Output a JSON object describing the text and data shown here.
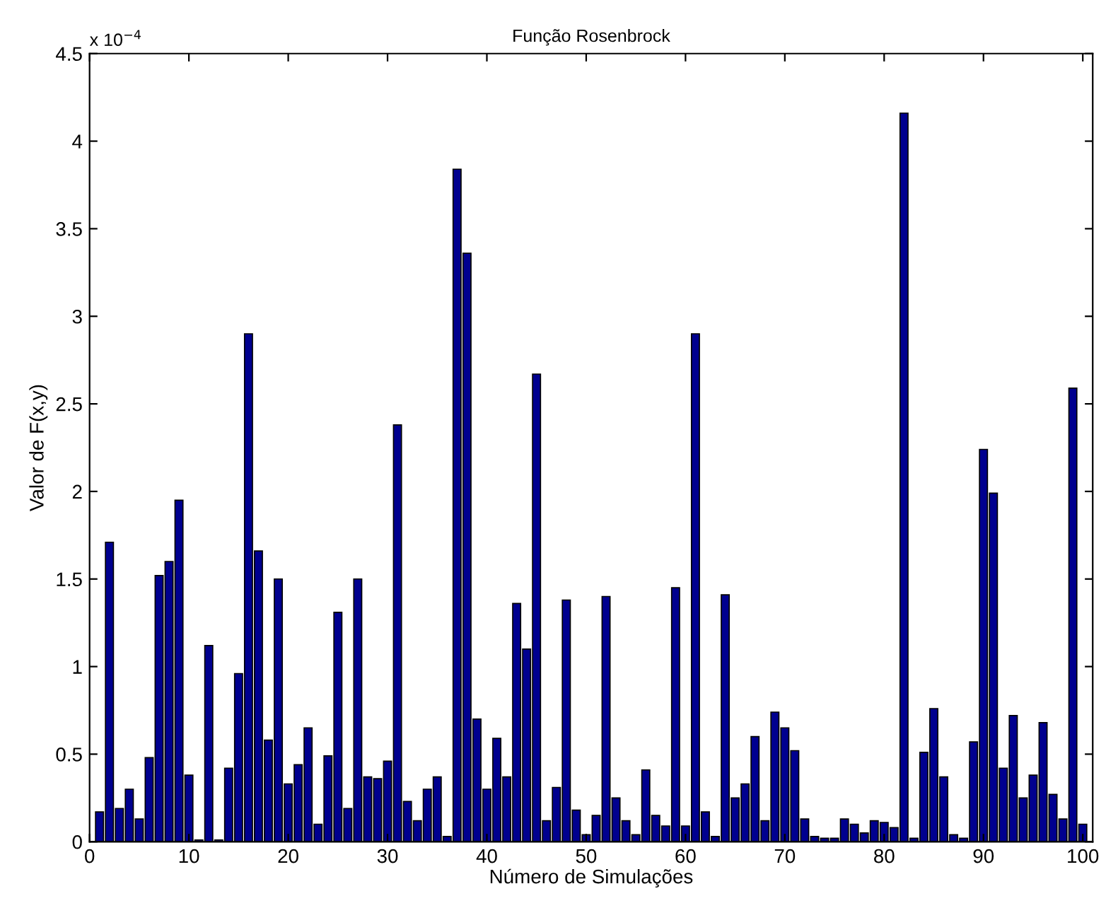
{
  "chart_data": {
    "type": "bar",
    "title": "Função Rosenbrock",
    "xlabel": "Número de Simulações",
    "ylabel": "Valor de F(x,y)",
    "annotations": [
      "x 10$^{−4}$"
    ],
    "x": [
      1,
      2,
      3,
      4,
      5,
      6,
      7,
      8,
      9,
      10,
      11,
      12,
      13,
      14,
      15,
      16,
      17,
      18,
      19,
      20,
      21,
      22,
      23,
      24,
      25,
      26,
      27,
      28,
      29,
      30,
      31,
      32,
      33,
      34,
      35,
      36,
      37,
      38,
      39,
      40,
      41,
      42,
      43,
      44,
      45,
      46,
      47,
      48,
      49,
      50,
      51,
      52,
      53,
      54,
      55,
      56,
      57,
      58,
      59,
      60,
      61,
      62,
      63,
      64,
      65,
      66,
      67,
      68,
      69,
      70,
      71,
      72,
      73,
      74,
      75,
      76,
      77,
      78,
      79,
      80,
      81,
      82,
      83,
      84,
      85,
      86,
      87,
      88,
      89,
      90,
      91,
      92,
      93,
      94,
      95,
      96,
      97,
      98,
      99,
      100
    ],
    "values": [
      0.17,
      1.71,
      0.19,
      0.3,
      0.13,
      0.48,
      1.52,
      1.6,
      1.95,
      0.38,
      0.01,
      1.12,
      0.01,
      0.42,
      0.96,
      2.9,
      1.66,
      0.58,
      1.5,
      0.33,
      0.44,
      0.65,
      0.1,
      0.49,
      1.31,
      0.19,
      1.5,
      0.37,
      0.36,
      0.46,
      2.38,
      0.23,
      0.12,
      0.3,
      0.37,
      0.03,
      3.84,
      3.36,
      0.7,
      0.3,
      0.59,
      0.37,
      1.36,
      1.1,
      2.67,
      0.12,
      0.31,
      1.38,
      0.18,
      0.04,
      0.15,
      1.4,
      0.25,
      0.12,
      0.04,
      0.41,
      0.15,
      0.09,
      1.45,
      0.09,
      2.9,
      0.17,
      0.03,
      1.41,
      0.25,
      0.33,
      0.6,
      0.12,
      0.74,
      0.65,
      0.52,
      0.13,
      0.03,
      0.02,
      0.02,
      0.13,
      0.1,
      0.05,
      0.12,
      0.11,
      0.08,
      4.16,
      0.02,
      0.51,
      0.76,
      0.37,
      0.04,
      0.02,
      0.57,
      2.24,
      1.99,
      0.42,
      0.72,
      0.25,
      0.38,
      0.68,
      0.27,
      0.13,
      2.59,
      0.1
    ],
    "color": "#00008f",
    "xlim": [
      0,
      101
    ],
    "xticks": [
      0,
      10,
      20,
      30,
      40,
      50,
      60,
      70,
      80,
      90,
      100
    ],
    "ylim": [
      0,
      4.5
    ],
    "yticks": [
      0,
      0.5,
      1,
      1.5,
      2,
      2.5,
      3,
      3.5,
      4,
      4.5
    ],
    "grid": false,
    "legend": false
  }
}
